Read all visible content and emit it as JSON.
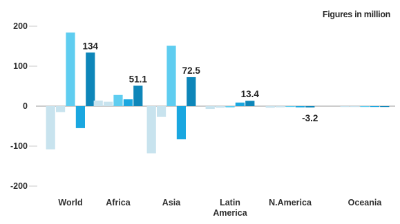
{
  "chart_data": {
    "type": "bar",
    "unit_note": "Figures in million",
    "ylim": [
      -200,
      200
    ],
    "yticks": [
      200,
      100,
      0,
      -100,
      -200
    ],
    "grid": true,
    "legend": "none",
    "colors": [
      "#c8e3ee",
      "#5fcdf0",
      "#1aa7e0",
      "#0e86b9"
    ],
    "categories": [
      [
        "World"
      ],
      [
        "Africa"
      ],
      [
        "Asia"
      ],
      [
        "Latin",
        "America"
      ],
      [
        "N.America"
      ],
      [
        "Oceania"
      ]
    ],
    "series": [
      {
        "values": [
          -108,
          14,
          -118,
          -7,
          -4,
          -1
        ]
      },
      {
        "values": [
          -15,
          11,
          -27,
          -4,
          -3,
          -1
        ]
      },
      {
        "values": [
          184,
          28,
          151,
          -3,
          -2,
          -1
        ]
      },
      {
        "values": [
          -55,
          17,
          -83,
          9,
          -3,
          -1
        ]
      },
      {
        "values": [
          134,
          51.1,
          72.5,
          13.4,
          -3.2,
          -1
        ]
      }
    ],
    "bar_colors_per_series": [
      0,
      0,
      1,
      2,
      3
    ],
    "data_labels": [
      {
        "category": 0,
        "series": 4,
        "text": "134"
      },
      {
        "category": 1,
        "series": 4,
        "text": "51.1"
      },
      {
        "category": 2,
        "series": 4,
        "text": "72.5"
      },
      {
        "category": 3,
        "series": 4,
        "text": "13.4"
      },
      {
        "category": 4,
        "series": 4,
        "text": "-3.2"
      }
    ]
  }
}
